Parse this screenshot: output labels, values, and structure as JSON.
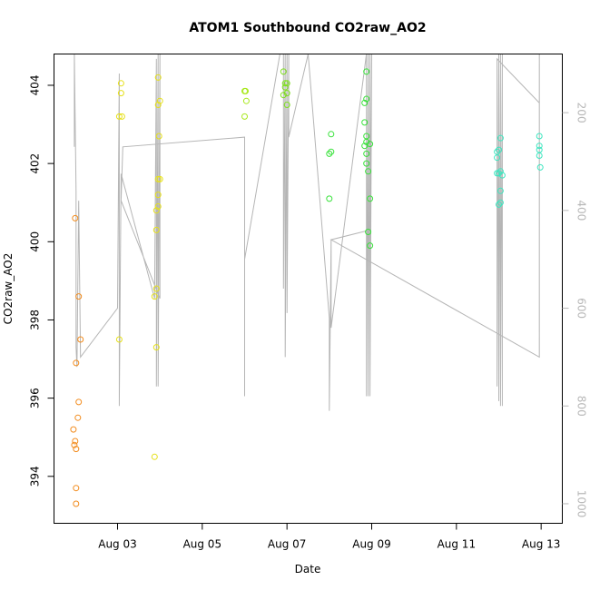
{
  "chart_data": {
    "type": "scatter",
    "title": "ATOM1 Southbound CO2raw_AO2",
    "xlabel": "Date",
    "ylabel": "CO2raw_AO2",
    "xlim": [
      "2016-08-01T12:00",
      "2016-08-13T12:00"
    ],
    "ylim": [
      392.8,
      404.8
    ],
    "x_ticks": [
      {
        "date": "2016-08-03",
        "label": "Aug 03"
      },
      {
        "date": "2016-08-05",
        "label": "Aug 05"
      },
      {
        "date": "2016-08-07",
        "label": "Aug 07"
      },
      {
        "date": "2016-08-09",
        "label": "Aug 09"
      },
      {
        "date": "2016-08-11",
        "label": "Aug 11"
      },
      {
        "date": "2016-08-13",
        "label": "Aug 13"
      }
    ],
    "y_ticks": [
      394,
      396,
      398,
      400,
      402,
      404
    ],
    "right_axis": {
      "range": [
        1040,
        80
      ],
      "ticks": [
        200,
        400,
        600,
        800,
        1000
      ],
      "color": "#b8b8b8"
    },
    "grid": false,
    "legend": "none",
    "series": [
      {
        "color": "#f28c1e",
        "points": [
          [
            "2016-08-02T00:00",
            400.6
          ],
          [
            "2016-08-02T02:00",
            398.6
          ],
          [
            "2016-08-02T03:00",
            397.5
          ],
          [
            "2016-08-02T00:30",
            396.9
          ],
          [
            "2016-08-02T02:00",
            395.9
          ],
          [
            "2016-08-02T01:30",
            395.5
          ],
          [
            "2016-08-01T23:00",
            395.2
          ],
          [
            "2016-08-02T00:00",
            394.9
          ],
          [
            "2016-08-01T23:30",
            394.8
          ],
          [
            "2016-08-02T00:30",
            394.7
          ],
          [
            "2016-08-02T00:30",
            393.7
          ],
          [
            "2016-08-02T00:30",
            393.3
          ]
        ]
      },
      {
        "color": "#e6e01a",
        "points": [
          [
            "2016-08-03T01:00",
            403.2
          ],
          [
            "2016-08-03T02:00",
            403.8
          ],
          [
            "2016-08-03T02:00",
            404.05
          ],
          [
            "2016-08-03T02:30",
            403.2
          ],
          [
            "2016-08-03T01:00",
            397.5
          ],
          [
            "2016-08-03T21:00",
            394.5
          ],
          [
            "2016-08-03T21:00",
            398.6
          ],
          [
            "2016-08-03T22:00",
            398.8
          ],
          [
            "2016-08-03T22:00",
            397.3
          ],
          [
            "2016-08-03T23:00",
            404.2
          ],
          [
            "2016-08-03T23:00",
            403.5
          ],
          [
            "2016-08-04T00:00",
            403.6
          ],
          [
            "2016-08-03T23:30",
            402.7
          ],
          [
            "2016-08-03T23:00",
            401.6
          ],
          [
            "2016-08-04T00:00",
            401.6
          ],
          [
            "2016-08-03T23:00",
            400.9
          ],
          [
            "2016-08-03T22:00",
            400.8
          ],
          [
            "2016-08-03T23:00",
            401.2
          ],
          [
            "2016-08-03T22:00",
            400.3
          ]
        ]
      },
      {
        "color": "#a8e81c",
        "points": [
          [
            "2016-08-06T00:00",
            403.85
          ],
          [
            "2016-08-06T00:30",
            403.85
          ],
          [
            "2016-08-06T01:00",
            403.6
          ],
          [
            "2016-08-06T00:00",
            403.2
          ]
        ]
      },
      {
        "color": "#7ee01c",
        "points": [
          [
            "2016-08-06T22:00",
            404.35
          ],
          [
            "2016-08-06T23:00",
            404.05
          ],
          [
            "2016-08-07T00:00",
            404.05
          ],
          [
            "2016-08-06T23:00",
            403.95
          ],
          [
            "2016-08-07T00:00",
            403.8
          ],
          [
            "2016-08-06T22:00",
            403.75
          ],
          [
            "2016-08-07T00:00",
            403.5
          ]
        ]
      },
      {
        "color": "#38e23a",
        "points": [
          [
            "2016-08-08T01:00",
            402.75
          ],
          [
            "2016-08-08T00:00",
            402.25
          ],
          [
            "2016-08-08T01:00",
            402.3
          ],
          [
            "2016-08-08T00:00",
            401.1
          ],
          [
            "2016-08-08T21:00",
            404.35
          ],
          [
            "2016-08-08T20:00",
            403.55
          ],
          [
            "2016-08-08T21:00",
            403.65
          ],
          [
            "2016-08-08T20:00",
            403.05
          ],
          [
            "2016-08-08T21:00",
            402.7
          ],
          [
            "2016-08-08T21:00",
            402.55
          ],
          [
            "2016-08-08T23:00",
            402.5
          ],
          [
            "2016-08-08T20:00",
            402.45
          ],
          [
            "2016-08-08T21:00",
            402.25
          ],
          [
            "2016-08-08T21:00",
            402.0
          ],
          [
            "2016-08-08T22:00",
            401.8
          ],
          [
            "2016-08-08T23:00",
            401.1
          ],
          [
            "2016-08-08T22:00",
            400.25
          ],
          [
            "2016-08-08T23:00",
            399.9
          ]
        ]
      },
      {
        "color": "#3ee6c0",
        "points": [
          [
            "2016-08-11T23:00",
            402.3
          ],
          [
            "2016-08-12T00:00",
            402.35
          ],
          [
            "2016-08-12T01:00",
            402.65
          ],
          [
            "2016-08-11T23:00",
            402.15
          ],
          [
            "2016-08-11T23:00",
            401.75
          ],
          [
            "2016-08-12T00:00",
            401.75
          ],
          [
            "2016-08-12T01:00",
            401.8
          ],
          [
            "2016-08-12T02:00",
            401.7
          ],
          [
            "2016-08-12T01:00",
            401.3
          ],
          [
            "2016-08-12T01:00",
            401.0
          ],
          [
            "2016-08-12T00:00",
            400.95
          ],
          [
            "2016-08-12T23:00",
            402.7
          ],
          [
            "2016-08-12T23:00",
            402.45
          ],
          [
            "2016-08-12T23:00",
            402.35
          ],
          [
            "2016-08-12T23:00",
            402.2
          ],
          [
            "2016-08-12T23:30",
            401.9
          ]
        ]
      }
    ],
    "trace": {
      "color": "#b5b5b5",
      "axis": "right",
      "vertices": [
        [
          "2016-08-01T23:30",
          85
        ],
        [
          "2016-08-01T23:30",
          270
        ],
        [
          "2016-08-01T23:30",
          80
        ],
        [
          "2016-08-02T00:30",
          360
        ],
        [
          "2016-08-02T00:30",
          680
        ],
        [
          "2016-08-02T01:00",
          720
        ],
        [
          "2016-08-02T02:00",
          380
        ],
        [
          "2016-08-02T03:00",
          700
        ],
        [
          "2016-08-03T00:00",
          600
        ],
        [
          "2016-08-03T01:00",
          120
        ],
        [
          "2016-08-03T01:00",
          800
        ],
        [
          "2016-08-03T02:00",
          325
        ],
        [
          "2016-08-03T21:00",
          580
        ],
        [
          "2016-08-03T22:00",
          90
        ],
        [
          "2016-08-03T22:00",
          760
        ],
        [
          "2016-08-03T23:00",
          80
        ],
        [
          "2016-08-03T23:00",
          760
        ],
        [
          "2016-08-04T00:00",
          80
        ],
        [
          "2016-08-04T00:00",
          580
        ],
        [
          "2016-08-03T02:00",
          380
        ],
        [
          "2016-08-03T03:00",
          270
        ],
        [
          "2016-08-06T00:00",
          250
        ],
        [
          "2016-08-06T00:00",
          780
        ],
        [
          "2016-08-06T00:00",
          500
        ],
        [
          "2016-08-06T20:00",
          80
        ],
        [
          "2016-08-06T22:00",
          80
        ],
        [
          "2016-08-06T22:00",
          560
        ],
        [
          "2016-08-06T23:00",
          80
        ],
        [
          "2016-08-06T23:00",
          700
        ],
        [
          "2016-08-07T00:00",
          80
        ],
        [
          "2016-08-07T00:00",
          610
        ],
        [
          "2016-08-07T01:00",
          80
        ],
        [
          "2016-08-07T01:00",
          250
        ],
        [
          "2016-08-07T12:00",
          80
        ],
        [
          "2016-08-07T12:00",
          80
        ],
        [
          "2016-08-08T00:00",
          620
        ],
        [
          "2016-08-08T00:00",
          810
        ],
        [
          "2016-08-08T01:00",
          460
        ],
        [
          "2016-08-08T01:00",
          640
        ],
        [
          "2016-08-08T21:00",
          80
        ],
        [
          "2016-08-08T21:00",
          780
        ],
        [
          "2016-08-08T22:00",
          80
        ],
        [
          "2016-08-08T22:00",
          780
        ],
        [
          "2016-08-08T23:00",
          80
        ],
        [
          "2016-08-08T23:00",
          780
        ],
        [
          "2016-08-09T00:00",
          80
        ],
        [
          "2016-08-08T23:00",
          440
        ],
        [
          "2016-08-08T01:00",
          460
        ],
        [
          "2016-08-12T23:00",
          700
        ],
        [
          "2016-08-12T23:00",
          80
        ],
        [
          "2016-08-12T23:00",
          180
        ],
        [
          "2016-08-11T23:00",
          90
        ],
        [
          "2016-08-11T23:00",
          760
        ],
        [
          "2016-08-12T00:00",
          80
        ],
        [
          "2016-08-12T00:00",
          790
        ],
        [
          "2016-08-12T01:00",
          80
        ],
        [
          "2016-08-12T01:00",
          800
        ],
        [
          "2016-08-12T02:00",
          80
        ],
        [
          "2016-08-12T02:00",
          800
        ]
      ]
    }
  }
}
